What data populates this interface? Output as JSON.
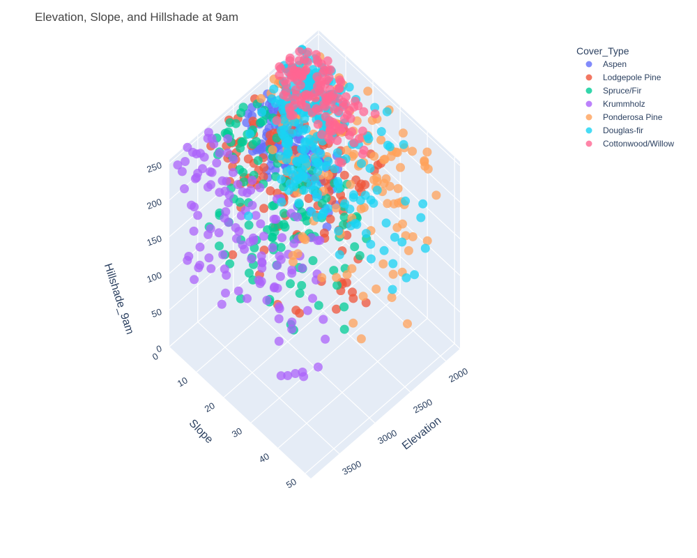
{
  "chart_data": {
    "type": "scatter3d",
    "title": "Elevation, Slope, and Hillshade at 9am",
    "axes": {
      "x": {
        "label": "Elevation",
        "range": [
          1800,
          3900
        ],
        "ticks": [
          2000,
          2500,
          3000,
          3500
        ]
      },
      "y": {
        "label": "Slope",
        "range": [
          0,
          52
        ],
        "ticks": [
          0,
          10,
          20,
          30,
          40,
          50
        ]
      },
      "z": {
        "label": "Hillshade_9am",
        "range": [
          0,
          255
        ],
        "ticks": [
          0,
          50,
          100,
          150,
          200,
          250
        ]
      }
    },
    "grid": true,
    "legend": {
      "title": "Cover_Type",
      "placement": "top-right"
    },
    "series": [
      {
        "name": "Aspen",
        "color": "#636efa",
        "clusters": [
          {
            "x": [
              2600,
              2950
            ],
            "y": [
              3,
              30
            ],
            "z": [
              170,
              250
            ]
          }
        ]
      },
      {
        "name": "Lodgepole Pine",
        "color": "#ef553b",
        "clusters": [
          {
            "x": [
              2300,
              3350
            ],
            "y": [
              0,
              40
            ],
            "z": [
              60,
              252
            ]
          }
        ]
      },
      {
        "name": "Spruce/Fir",
        "color": "#00cc96",
        "clusters": [
          {
            "x": [
              2700,
              3450
            ],
            "y": [
              0,
              45
            ],
            "z": [
              50,
              252
            ]
          }
        ]
      },
      {
        "name": "Krummholz",
        "color": "#ab63fa",
        "clusters": [
          {
            "x": [
              3250,
              3850
            ],
            "y": [
              0,
              45
            ],
            "z": [
              60,
              252
            ]
          }
        ]
      },
      {
        "name": "Ponderosa Pine",
        "color": "#ffa15a",
        "clusters": [
          {
            "x": [
              1850,
              2700
            ],
            "y": [
              0,
              50
            ],
            "z": [
              10,
              252
            ]
          }
        ]
      },
      {
        "name": "Douglas-fir",
        "color": "#19d3f3",
        "clusters": [
          {
            "x": [
              1900,
              2850
            ],
            "y": [
              0,
              45
            ],
            "z": [
              80,
              252
            ]
          },
          {
            "x": [
              2000,
              2400
            ],
            "y": [
              0,
              15
            ],
            "z": [
              80,
              252
            ]
          }
        ]
      },
      {
        "name": "Cottonwood/Willow",
        "color": "#ff6692",
        "clusters": [
          {
            "x": [
              1950,
              2450
            ],
            "y": [
              0,
              25
            ],
            "z": [
              180,
              252
            ]
          }
        ]
      }
    ]
  }
}
